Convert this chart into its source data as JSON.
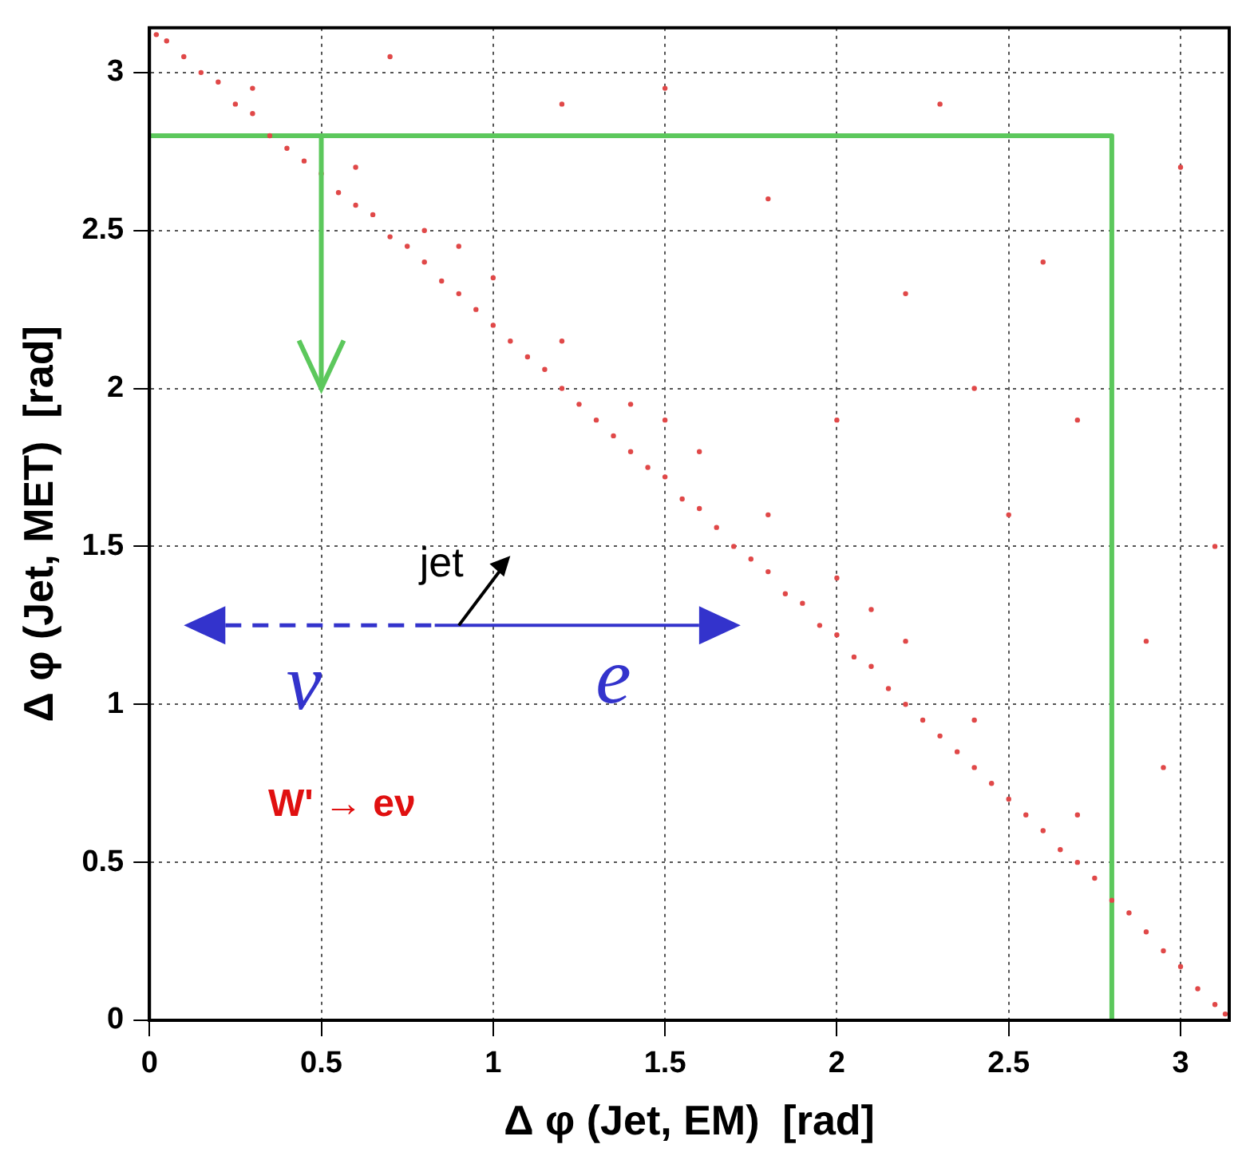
{
  "chart_data": {
    "type": "scatter",
    "xlabel": "Δ φ (Jet, EM)  [rad]",
    "ylabel": "Δ φ (Jet, MET)  [rad]",
    "xlim": [
      0,
      3.1416
    ],
    "ylim": [
      0,
      3.1416
    ],
    "xticks": [
      0,
      0.5,
      1,
      1.5,
      2,
      2.5,
      3
    ],
    "yticks": [
      0,
      0.5,
      1,
      1.5,
      2,
      2.5,
      3
    ],
    "grid": true,
    "annotations": [
      "jet",
      "ν",
      "e",
      "W' → eν"
    ],
    "series": [
      {
        "marker": "circle",
        "color": "#e04848",
        "x": [
          0.02,
          0.05,
          0.1,
          0.15,
          0.2,
          0.25,
          0.3,
          0.35,
          0.4,
          0.45,
          0.5,
          0.55,
          0.6,
          0.65,
          0.7,
          0.75,
          0.8,
          0.85,
          0.9,
          0.95,
          1.0,
          1.05,
          1.1,
          1.15,
          1.2,
          1.25,
          1.3,
          1.35,
          1.4,
          1.45,
          1.5,
          1.55,
          1.6,
          1.65,
          1.7,
          1.75,
          1.8,
          1.85,
          1.9,
          1.95,
          2.0,
          2.05,
          2.1,
          2.15,
          2.2,
          2.25,
          2.3,
          2.35,
          2.4,
          2.45,
          2.5,
          2.55,
          2.6,
          2.65,
          2.7,
          2.75,
          2.8,
          2.85,
          2.9,
          2.95,
          3.0,
          3.05,
          3.1,
          3.13,
          0.3,
          0.6,
          0.9,
          1.2,
          1.5,
          1.8,
          2.1,
          2.4,
          2.7,
          1.0,
          1.6,
          2.2,
          0.8,
          1.4,
          2.0,
          1.2,
          1.8,
          2.3,
          2.5,
          2.9,
          2.2,
          3.0,
          2.6,
          1.5,
          2.95,
          2.7,
          2.0,
          3.1,
          0.7,
          2.4
        ],
        "values": [
          3.12,
          3.1,
          3.05,
          3.0,
          2.97,
          2.9,
          2.87,
          2.8,
          2.76,
          2.72,
          2.68,
          2.62,
          2.58,
          2.55,
          2.48,
          2.45,
          2.4,
          2.34,
          2.3,
          2.25,
          2.2,
          2.15,
          2.1,
          2.06,
          2.0,
          1.95,
          1.9,
          1.85,
          1.8,
          1.75,
          1.72,
          1.65,
          1.62,
          1.56,
          1.5,
          1.46,
          1.42,
          1.35,
          1.32,
          1.25,
          1.22,
          1.15,
          1.12,
          1.05,
          1.0,
          0.95,
          0.9,
          0.85,
          0.8,
          0.75,
          0.7,
          0.65,
          0.6,
          0.54,
          0.5,
          0.45,
          0.38,
          0.34,
          0.28,
          0.22,
          0.17,
          0.1,
          0.05,
          0.02,
          2.95,
          2.7,
          2.45,
          2.15,
          1.9,
          1.6,
          1.3,
          0.95,
          0.65,
          2.35,
          1.8,
          1.2,
          2.5,
          1.95,
          1.4,
          2.9,
          2.6,
          2.9,
          1.6,
          1.2,
          2.3,
          2.7,
          2.4,
          2.95,
          0.8,
          1.9,
          1.9,
          1.5,
          3.05,
          2.0
        ]
      },
      {
        "type": "line",
        "color": "#5cc85c",
        "x": [
          0,
          2.8,
          2.8
        ],
        "values": [
          2.8,
          2.8,
          0
        ]
      }
    ]
  }
}
